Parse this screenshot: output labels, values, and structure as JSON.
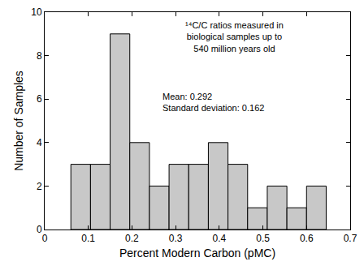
{
  "chart_data": {
    "type": "histogram",
    "x_label": "Percent Modern Carbon (pMC)",
    "y_label": "Number of Samples",
    "annotations": [
      [
        "¹⁴C/C ratios measured in",
        "biological samples up to",
        "540 million years old"
      ],
      [
        "Mean: 0.292",
        "Standard deviation: 0.162"
      ]
    ],
    "bins": [
      0.06,
      0.105,
      0.15,
      0.195,
      0.24,
      0.285,
      0.33,
      0.375,
      0.42,
      0.465,
      0.51,
      0.555,
      0.6,
      0.645
    ],
    "values": [
      3,
      3,
      9,
      4,
      2,
      3,
      3,
      4,
      3,
      1,
      2,
      1,
      2
    ],
    "color": "#c8c8c8",
    "xlim": [
      0,
      0.7
    ],
    "xticks": [
      0,
      0.1,
      0.2,
      0.3,
      0.4,
      0.5,
      0.6,
      0.7
    ],
    "ylim": [
      0,
      10
    ],
    "yticks": [
      0,
      2,
      4,
      6,
      8,
      10
    ],
    "grid": false
  }
}
